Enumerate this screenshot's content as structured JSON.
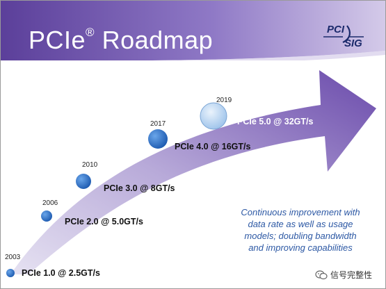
{
  "slide": {
    "title": "PCIe",
    "title_reg": "®",
    "title_suffix": " Roadmap",
    "logo_text_top": "PCI",
    "logo_text_bottom": "SIG"
  },
  "milestones": [
    {
      "year": "2003",
      "label": "PCIe 1.0 @ 2.5GT/s"
    },
    {
      "year": "2006",
      "label": "PCIe 2.0 @ 5.0GT/s"
    },
    {
      "year": "2010",
      "label": "PCIe 3.0 @ 8GT/s"
    },
    {
      "year": "2017",
      "label": "PCIe 4.0 @ 16GT/s"
    },
    {
      "year": "2019",
      "label": "PCIe 5.0 @ 32GT/s"
    }
  ],
  "note": {
    "lines": [
      "Continuous improvement with",
      "data rate as well as usage",
      "models; doubling bandwidth",
      "and improving capabilities"
    ]
  },
  "watermark": {
    "text": "信号完整性"
  },
  "colors": {
    "header_dark": "#5b3f9a",
    "header_light": "#b9a8dc",
    "arrow_dark": "#6e4fad",
    "arrow_light": "#d9d3ec",
    "circle_blue": "#2a6fc4",
    "circle_light": "#b9d4f0",
    "note_text": "#2c58a4"
  }
}
